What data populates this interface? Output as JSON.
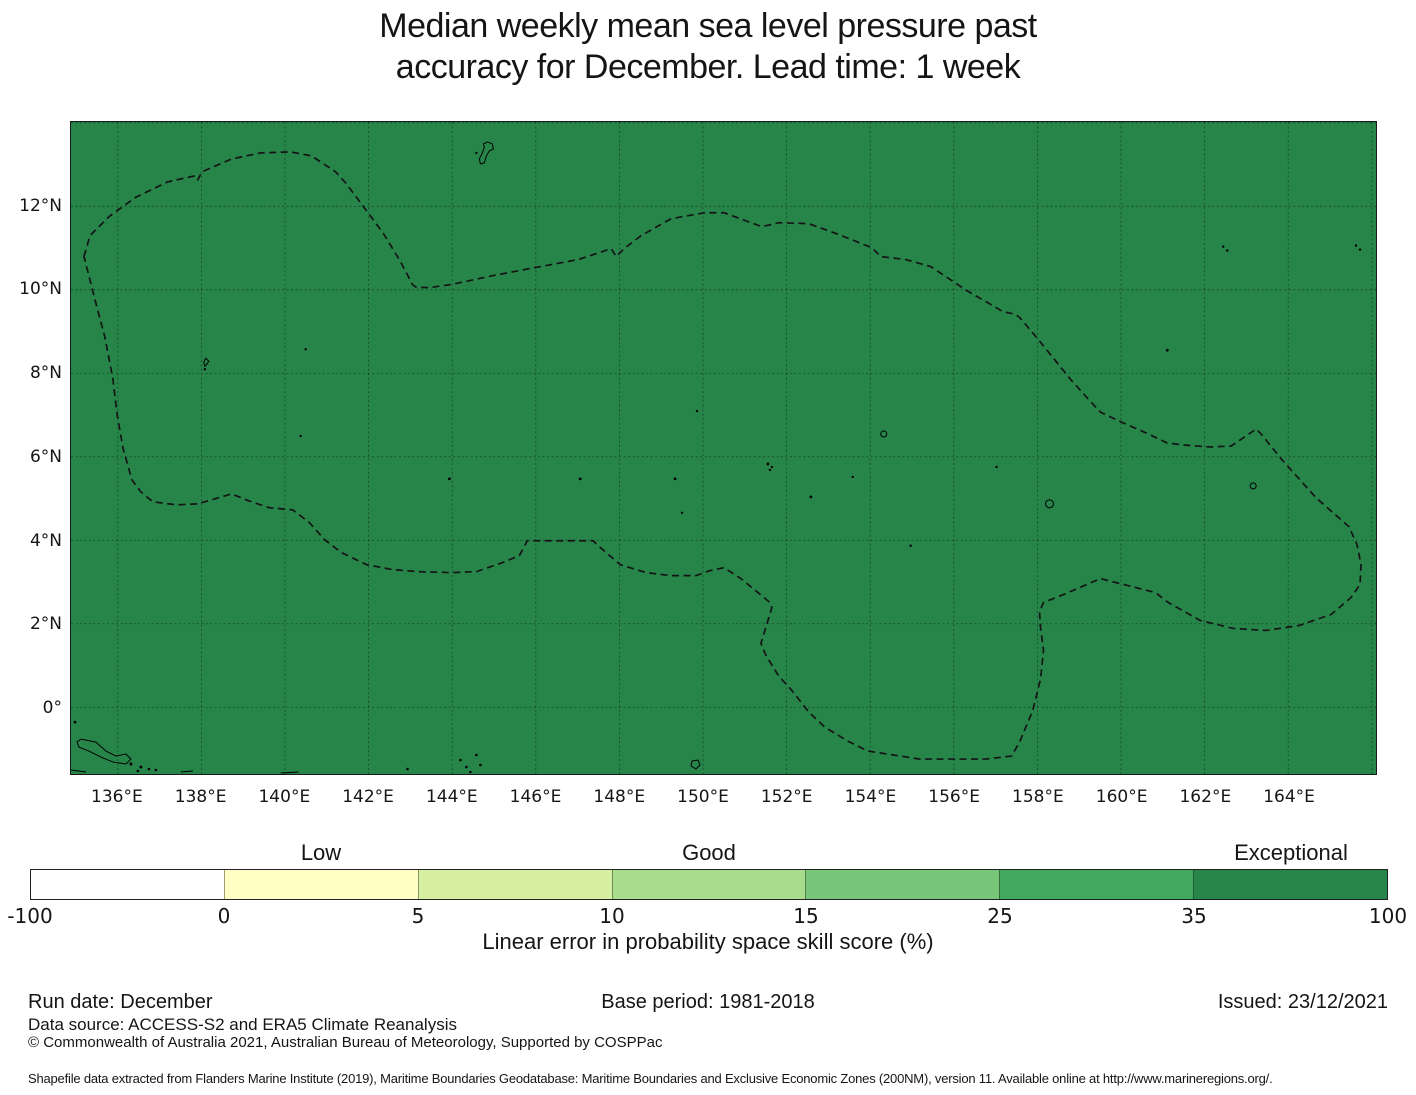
{
  "title": {
    "line1": "Median weekly mean sea level pressure past",
    "line2": "accuracy for December. Lead time: 1 week"
  },
  "map": {
    "fill_color": "#27854a",
    "grid_color": "rgba(0,0,0,0.45)",
    "boundary_color": "#141414",
    "lat_ticks": [
      {
        "label": "12°N",
        "deg": 12
      },
      {
        "label": "10°N",
        "deg": 10
      },
      {
        "label": "8°N",
        "deg": 8
      },
      {
        "label": "6°N",
        "deg": 6
      },
      {
        "label": "4°N",
        "deg": 4
      },
      {
        "label": "2°N",
        "deg": 2
      },
      {
        "label": "0°",
        "deg": 0
      }
    ],
    "lon_ticks": [
      {
        "label": "136°E",
        "deg": 136
      },
      {
        "label": "138°E",
        "deg": 138
      },
      {
        "label": "140°E",
        "deg": 140
      },
      {
        "label": "142°E",
        "deg": 142
      },
      {
        "label": "144°E",
        "deg": 144
      },
      {
        "label": "146°E",
        "deg": 146
      },
      {
        "label": "148°E",
        "deg": 148
      },
      {
        "label": "150°E",
        "deg": 150
      },
      {
        "label": "152°E",
        "deg": 152
      },
      {
        "label": "154°E",
        "deg": 154
      },
      {
        "label": "156°E",
        "deg": 156
      },
      {
        "label": "158°E",
        "deg": 158
      },
      {
        "label": "160°E",
        "deg": 160
      },
      {
        "label": "162°E",
        "deg": 162
      },
      {
        "label": "164°E",
        "deg": 164
      }
    ]
  },
  "colorbar": {
    "boundaries": [
      "-100",
      "0",
      "5",
      "10",
      "15",
      "25",
      "35",
      "100"
    ],
    "colors": [
      "#ffffff",
      "#ffffc5",
      "#d7efa1",
      "#a8dd8e",
      "#78c679",
      "#41a95d",
      "#27854a"
    ],
    "class_labels": [
      {
        "text": "Low",
        "segment": 1
      },
      {
        "text": "Good",
        "segment": 3
      },
      {
        "text": "Exceptional",
        "segment": 6
      }
    ],
    "axis_label": "Linear error in probability space skill score (%)"
  },
  "chart_data": {
    "type": "heatmap",
    "title": "Median weekly mean sea level pressure past accuracy for December. Lead time: 1 week",
    "x_ticks": [
      "136°E",
      "138°E",
      "140°E",
      "142°E",
      "144°E",
      "146°E",
      "148°E",
      "150°E",
      "152°E",
      "154°E",
      "156°E",
      "158°E",
      "160°E",
      "162°E",
      "164°E"
    ],
    "y_ticks": [
      "12°N",
      "10°N",
      "8°N",
      "6°N",
      "4°N",
      "2°N",
      "0°"
    ],
    "colorbar_label": "Linear error in probability space skill score (%)",
    "class_boundaries": [
      -100,
      0,
      5,
      10,
      15,
      25,
      35,
      100
    ],
    "class_names": [
      "",
      "Low",
      "",
      "Good",
      "",
      "",
      "Exceptional"
    ],
    "observed_value_class": "Entire mapped region shaded in the 35–100 (Exceptional) class"
  },
  "footer": {
    "run_date": "Run date: December",
    "base_period": "Base period: 1981-2018",
    "issued": "Issued: 23/12/2021",
    "data_source": "Data source: ACCESS-S2 and ERA5 Climate Reanalysis",
    "copyright": "© Commonwealth of Australia 2021, Australian Bureau of Meteorology, Supported by COSPPac",
    "shapefile": "Shapefile data extracted from Flanders Marine Institute (2019), Maritime Boundaries Geodatabase: Maritime Boundaries and Exclusive Economic Zones (200NM), version 11. Available online at http://www.marineregions.org/."
  }
}
